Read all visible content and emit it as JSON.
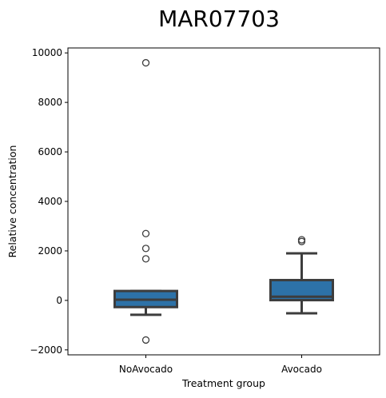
{
  "chart_data": {
    "type": "box",
    "title": "MAR07703",
    "xlabel": "Treatment group",
    "ylabel": "Relative concentration",
    "categories": [
      "NoAvocado",
      "Avocado"
    ],
    "ylim": [
      -2200,
      10200
    ],
    "yticks": [
      -2000,
      0,
      2000,
      4000,
      6000,
      8000,
      10000
    ],
    "ytick_labels": [
      "−2000",
      "0",
      "2000",
      "4000",
      "6000",
      "8000",
      "10000"
    ],
    "grid": false,
    "color": "#2d72a8",
    "boxes": [
      {
        "category": "NoAvocado",
        "whisker_low": -580,
        "q1": -270,
        "median": 30,
        "q3": 380,
        "whisker_high": 380,
        "outliers": [
          9600,
          2700,
          2100,
          1680,
          -1600
        ]
      },
      {
        "category": "Avocado",
        "whisker_low": -520,
        "q1": 10,
        "median": 150,
        "q3": 820,
        "whisker_high": 1900,
        "outliers": [
          2450,
          2380
        ]
      }
    ]
  }
}
